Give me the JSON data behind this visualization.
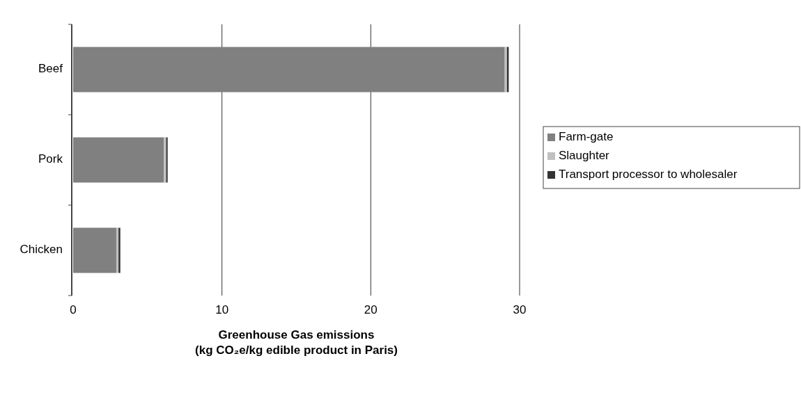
{
  "chart_data": {
    "type": "bar",
    "orientation": "horizontal",
    "stacked": true,
    "xlabel": "Greenhouse Gas emissions\n(kg CO₂e/kg edible product in Paris)",
    "categories": [
      "Beef",
      "Pork",
      "Chicken"
    ],
    "series": [
      {
        "name": "Farm-gate",
        "color": "#808080",
        "values": [
          29.0,
          6.1,
          2.9
        ]
      },
      {
        "name": "Slaughter",
        "color": "#c0c0c0",
        "values": [
          0.15,
          0.15,
          0.15
        ]
      },
      {
        "name": "Transport processor to wholesaler",
        "color": "#333333",
        "values": [
          0.12,
          0.1,
          0.12
        ]
      }
    ],
    "xlim": [
      0,
      30
    ],
    "xticks": [
      0,
      10,
      20,
      30
    ],
    "grid": "x",
    "legend": "right"
  }
}
